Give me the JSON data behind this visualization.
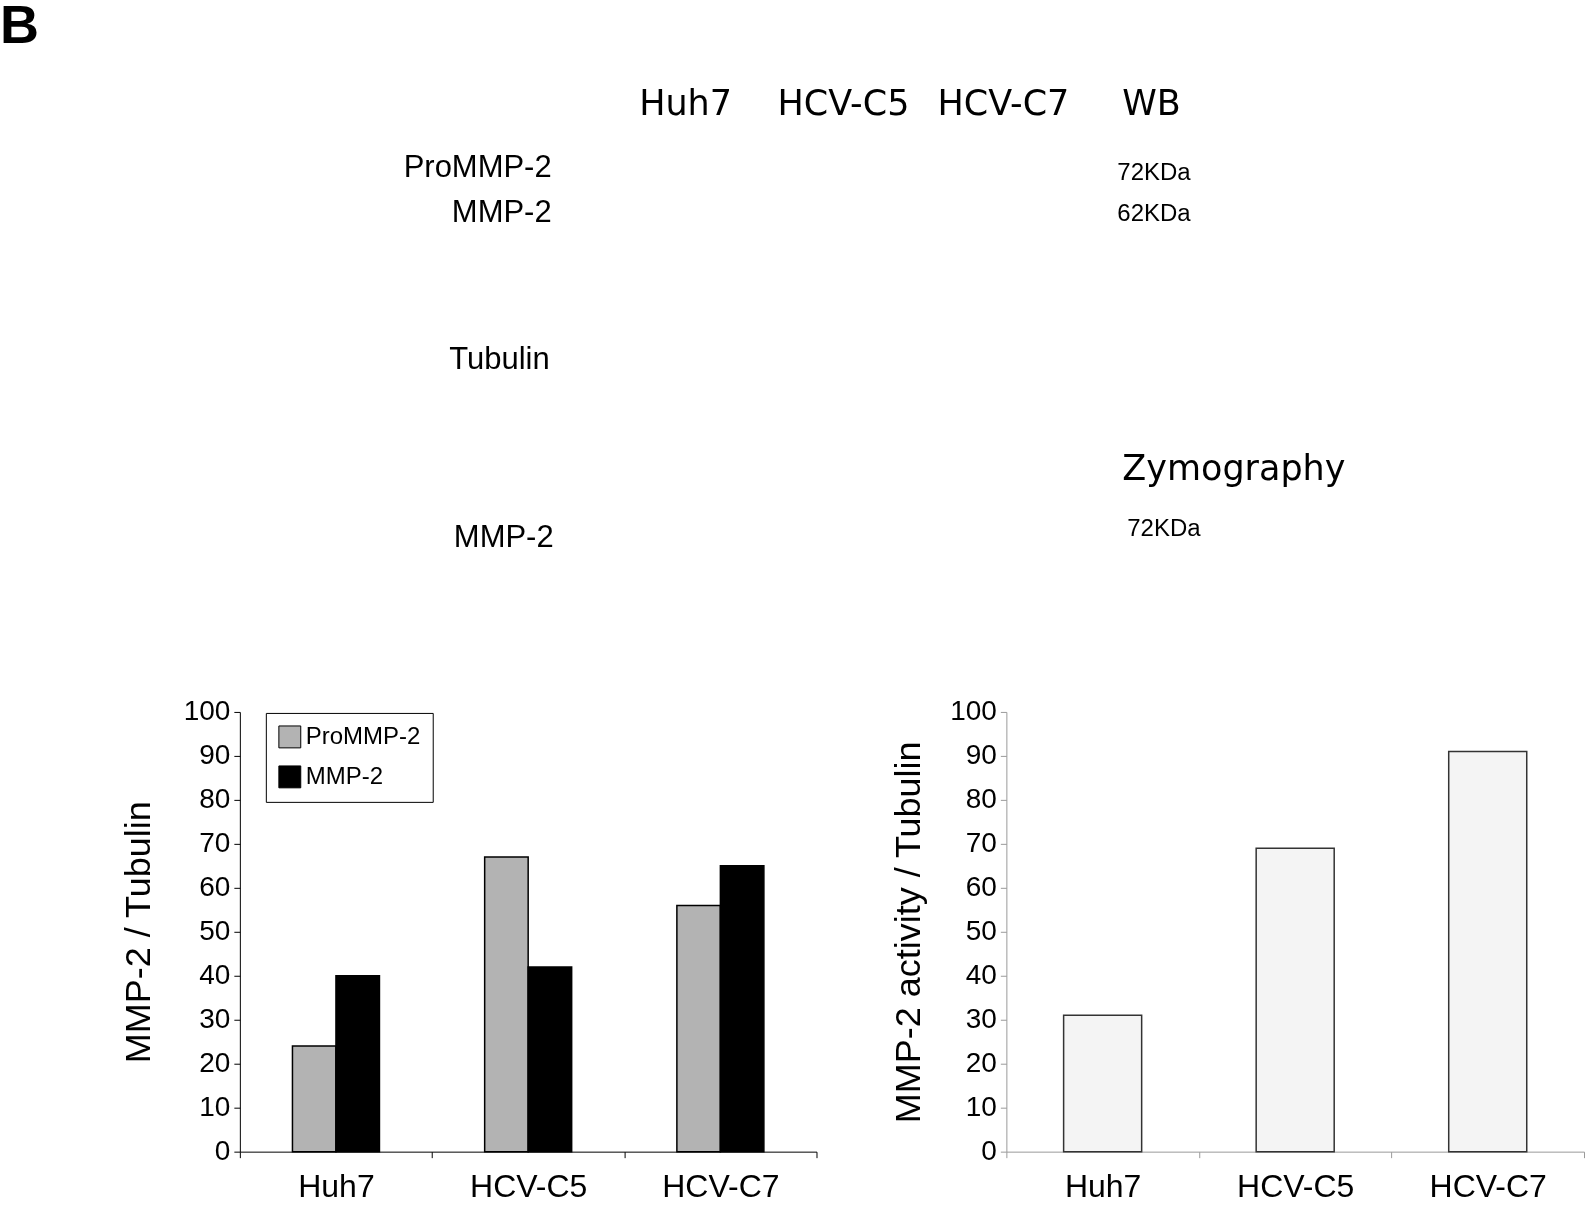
{
  "chart_data": [
    {
      "type": "other",
      "annotations": [
        "B",
        "Huh7",
        "HCV-C5",
        "HCV-C7",
        "WB",
        "ProMMP-2",
        "MMP-2",
        "72KDa",
        "62KDa",
        "Tubulin",
        "Zymography",
        "MMP-2",
        "72KDa"
      ]
    },
    {
      "type": "bar",
      "ylabel": "MMP-2 / Tubulin",
      "categories": [
        "Huh7",
        "HCV-C5",
        "HCV-C7"
      ],
      "series": [
        {
          "name": "ProMMP-2",
          "color": "#b3b3b3",
          "values": [
            24,
            67,
            56
          ]
        },
        {
          "name": "MMP-2",
          "color": "#000000",
          "values": [
            40,
            42,
            65
          ]
        }
      ],
      "ylim": [
        0,
        100
      ],
      "yticks": [
        0,
        10,
        20,
        30,
        40,
        50,
        60,
        70,
        80,
        90,
        100
      ],
      "legend": "top left"
    },
    {
      "type": "bar",
      "ylabel": "MMP-2 activity / Tubulin",
      "categories": [
        "Huh7",
        "HCV-C5",
        "HCV-C7"
      ],
      "values": [
        31,
        69,
        91
      ],
      "color": "#f4f4f4",
      "ylim": [
        0,
        100
      ],
      "yticks": [
        0,
        10,
        20,
        30,
        40,
        50,
        60,
        70,
        80,
        90,
        100
      ]
    }
  ]
}
